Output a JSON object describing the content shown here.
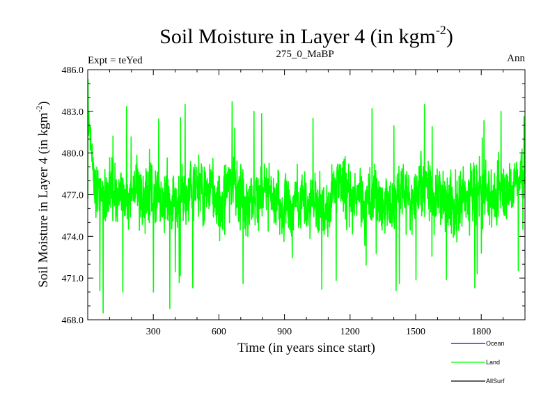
{
  "chart_data": {
    "type": "line",
    "title": "Soil Moisture in Layer 4 (in kgm",
    "title_superscript": "-2",
    "title_suffix": ")",
    "subtitle_left": "Expt = teYed",
    "subtitle_center": "275_0_MaBP",
    "subtitle_right": "Ann",
    "xlabel": "Time (in years since start)",
    "ylabel": "Soil Moisture in Layer 4 (in kgm",
    "ylabel_superscript": "-2",
    "ylabel_suffix": ")",
    "xlim": [
      0,
      2000
    ],
    "ylim": [
      468.0,
      486.0
    ],
    "x_ticks": [
      300,
      600,
      900,
      1200,
      1500,
      1800
    ],
    "y_ticks": [
      "468.0",
      "471.0",
      "474.0",
      "477.0",
      "480.0",
      "483.0",
      "486.0"
    ],
    "legend_position": "bottom-right, outside plot",
    "series": [
      {
        "name": "Ocean",
        "color": "#0000ff",
        "values": []
      },
      {
        "name": "Land",
        "color": "#00ff00",
        "mean": 477.0,
        "summary": "noisy annual series, approx 468.5-485.5, mean ~477",
        "keypoints": [
          {
            "x": 1,
            "y": 485.3
          },
          {
            "x": 5,
            "y": 483.0
          },
          {
            "x": 12,
            "y": 481.5
          },
          {
            "x": 20,
            "y": 479.0
          },
          {
            "x": 55,
            "y": 470.1
          },
          {
            "x": 70,
            "y": 468.5
          },
          {
            "x": 160,
            "y": 470.0
          },
          {
            "x": 300,
            "y": 470.0
          },
          {
            "x": 375,
            "y": 468.8
          },
          {
            "x": 445,
            "y": 483.5
          },
          {
            "x": 480,
            "y": 470.3
          },
          {
            "x": 660,
            "y": 483.7
          },
          {
            "x": 710,
            "y": 470.6
          },
          {
            "x": 760,
            "y": 483.0
          },
          {
            "x": 1030,
            "y": 482.5
          },
          {
            "x": 1070,
            "y": 470.2
          },
          {
            "x": 1300,
            "y": 483.2
          },
          {
            "x": 1425,
            "y": 470.6
          },
          {
            "x": 1540,
            "y": 483.5
          },
          {
            "x": 1770,
            "y": 470.3
          },
          {
            "x": 1890,
            "y": 483.0
          },
          {
            "x": 1990,
            "y": 474.5
          }
        ]
      },
      {
        "name": "AllSurf",
        "color": "#000000",
        "values": []
      }
    ]
  }
}
